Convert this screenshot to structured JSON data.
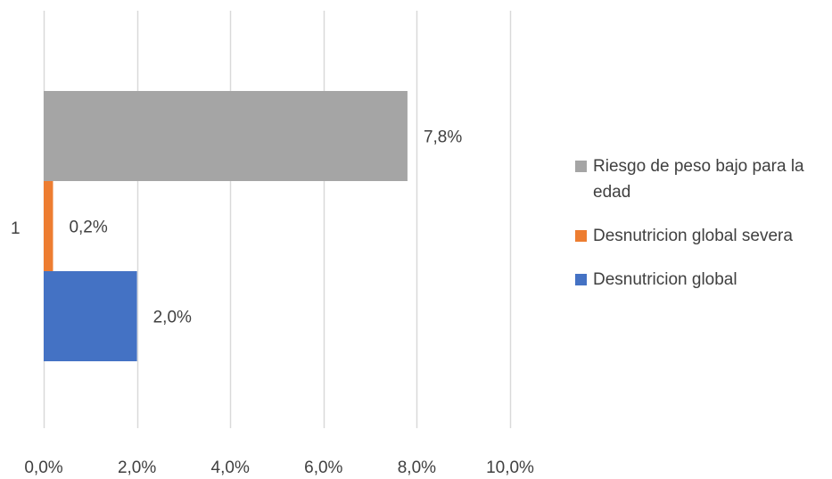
{
  "chart_data": {
    "type": "bar",
    "orientation": "horizontal",
    "categories": [
      "1"
    ],
    "xlim": [
      0,
      10
    ],
    "x_ticks": [
      0,
      2,
      4,
      6,
      8,
      10
    ],
    "x_tick_labels": [
      "0,0%",
      "2,0%",
      "4,0%",
      "6,0%",
      "8,0%",
      "10,0%"
    ],
    "grid": true,
    "legend_position": "right",
    "series": [
      {
        "name": "Desnutricion global",
        "values": [
          2.0
        ],
        "label": "2,0%",
        "color": "#4472C4"
      },
      {
        "name": "Desnutricion global severa",
        "values": [
          0.2
        ],
        "label": "0,2%",
        "color": "#ED7D31"
      },
      {
        "name": "Riesgo de peso bajo para la edad",
        "values": [
          7.8
        ],
        "label": "7,8%",
        "color": "#A5A5A5"
      }
    ],
    "legend_order": [
      2,
      1,
      0
    ],
    "colors": {
      "grid": "#D9D9D9",
      "text": "#404040"
    }
  }
}
